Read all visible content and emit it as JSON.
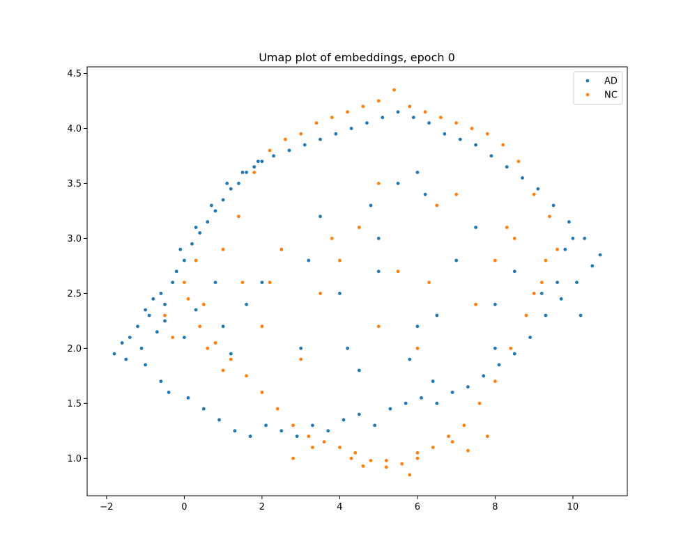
{
  "chart_data": {
    "type": "scatter",
    "title": "Umap plot of embeddings, epoch 0",
    "xlabel": "",
    "ylabel": "",
    "xlim": [
      -2.5,
      11.4
    ],
    "ylim": [
      0.66,
      4.56
    ],
    "xticks": [
      -2,
      0,
      2,
      4,
      6,
      8,
      10
    ],
    "xtick_labels": [
      "−2",
      "0",
      "2",
      "4",
      "6",
      "8",
      "10"
    ],
    "yticks": [
      1.0,
      1.5,
      2.0,
      2.5,
      3.0,
      3.5,
      4.0,
      4.5
    ],
    "ytick_labels": [
      "1.0",
      "1.5",
      "2.0",
      "2.5",
      "3.0",
      "3.5",
      "4.0",
      "4.5"
    ],
    "grid": false,
    "legend_position": "top-right",
    "series": [
      {
        "name": "AD",
        "color": "#1f77b4",
        "marker": "circle",
        "x": [
          -1.8,
          -1.6,
          -1.4,
          -1.2,
          -1.0,
          -0.8,
          -0.6,
          -1.5,
          -1.1,
          -0.9,
          -0.7,
          -0.5,
          -0.3,
          -0.6,
          -0.2,
          0.0,
          0.2,
          0.4,
          0.6,
          0.8,
          1.0,
          1.2,
          1.4,
          1.6,
          1.8,
          2.0,
          -0.4,
          0.1,
          0.5,
          0.9,
          1.3,
          1.7,
          2.1,
          2.5,
          2.9,
          3.3,
          3.7,
          4.1,
          4.5,
          4.9,
          5.3,
          5.7,
          6.1,
          6.5,
          6.9,
          7.3,
          7.7,
          8.1,
          8.5,
          8.9,
          9.3,
          9.7,
          10.1,
          10.5,
          10.7,
          10.3,
          9.9,
          9.5,
          9.1,
          8.7,
          8.3,
          7.9,
          7.5,
          7.1,
          6.7,
          6.3,
          5.9,
          5.5,
          5.1,
          4.7,
          4.3,
          3.9,
          3.5,
          3.1,
          2.7,
          2.3,
          1.9,
          1.5,
          1.1,
          0.7,
          0.3,
          -0.1,
          3.0,
          4.0,
          5.0,
          6.0,
          7.0,
          8.0,
          2.0,
          3.5,
          4.5,
          5.5,
          6.5,
          7.5,
          8.5,
          1.0,
          2.5,
          4.2,
          5.8,
          6.2,
          9.6,
          10.2,
          10.0,
          9.8,
          0.0,
          0.8,
          1.6,
          3.2,
          4.8,
          6.4,
          8.0,
          9.2,
          5.0,
          6.0,
          -1.0,
          -0.5,
          0.3,
          1.2
        ],
        "y": [
          1.95,
          2.05,
          2.1,
          2.2,
          2.35,
          2.45,
          2.5,
          1.9,
          2.0,
          2.3,
          2.15,
          2.4,
          2.6,
          1.7,
          2.7,
          2.8,
          2.95,
          3.05,
          3.15,
          3.25,
          3.35,
          3.45,
          3.5,
          3.6,
          3.65,
          3.7,
          1.6,
          1.55,
          1.45,
          1.35,
          1.25,
          1.2,
          1.3,
          1.25,
          1.2,
          1.3,
          1.25,
          1.35,
          1.4,
          1.3,
          1.45,
          1.5,
          1.55,
          1.5,
          1.6,
          1.65,
          1.75,
          1.85,
          1.95,
          2.1,
          2.3,
          2.45,
          2.6,
          2.75,
          2.85,
          3.0,
          3.15,
          3.3,
          3.45,
          3.55,
          3.65,
          3.75,
          3.85,
          3.9,
          3.95,
          4.05,
          4.1,
          4.15,
          4.1,
          4.05,
          4.0,
          3.95,
          3.9,
          3.85,
          3.8,
          3.75,
          3.7,
          3.6,
          3.5,
          3.3,
          3.1,
          2.9,
          2.0,
          2.5,
          3.0,
          2.2,
          2.8,
          2.4,
          2.6,
          3.2,
          1.8,
          3.5,
          2.3,
          3.1,
          2.7,
          2.2,
          2.9,
          2.0,
          1.9,
          3.4,
          2.6,
          2.3,
          3.0,
          2.9,
          2.1,
          2.6,
          2.4,
          2.8,
          3.3,
          1.7,
          2.0,
          2.5,
          2.7,
          3.6,
          1.85,
          2.25,
          2.35,
          1.95
        ]
      },
      {
        "name": "NC",
        "color": "#ff7f0e",
        "marker": "circle",
        "x": [
          -0.5,
          -0.3,
          0.0,
          0.3,
          0.6,
          1.0,
          1.4,
          1.8,
          2.2,
          2.6,
          3.0,
          3.4,
          3.8,
          4.2,
          4.6,
          5.0,
          5.4,
          5.8,
          6.2,
          6.6,
          7.0,
          7.4,
          7.8,
          8.2,
          8.6,
          9.0,
          9.4,
          9.6,
          9.2,
          8.8,
          8.4,
          8.0,
          7.6,
          7.2,
          6.8,
          6.4,
          6.0,
          5.6,
          5.2,
          4.8,
          4.4,
          4.0,
          3.6,
          3.2,
          2.8,
          2.4,
          2.0,
          1.6,
          1.2,
          0.8,
          0.4,
          0.1,
          2.5,
          3.5,
          4.5,
          5.5,
          6.5,
          7.5,
          8.5,
          1.5,
          2.0,
          3.0,
          4.0,
          5.0,
          6.0,
          7.0,
          8.0,
          9.0,
          5.2,
          5.8,
          6.0,
          4.6,
          4.3,
          3.3,
          2.8,
          6.9,
          7.3,
          7.8,
          5.0,
          1.0,
          0.5,
          2.2,
          3.8,
          6.3,
          8.3,
          9.3
        ],
        "y": [
          2.3,
          2.1,
          2.6,
          2.8,
          2.0,
          1.8,
          3.2,
          3.6,
          3.8,
          3.9,
          3.95,
          4.05,
          4.1,
          4.15,
          4.2,
          4.25,
          4.35,
          4.2,
          4.15,
          4.1,
          4.05,
          4.0,
          3.95,
          3.85,
          3.7,
          3.4,
          3.2,
          2.9,
          2.6,
          2.3,
          2.0,
          1.7,
          1.5,
          1.3,
          1.2,
          1.1,
          1.0,
          0.95,
          0.92,
          0.98,
          1.05,
          1.1,
          1.15,
          1.2,
          1.3,
          1.45,
          1.6,
          1.75,
          1.9,
          2.05,
          2.2,
          2.45,
          2.9,
          2.5,
          3.1,
          2.7,
          3.3,
          2.4,
          3.0,
          2.6,
          2.2,
          1.9,
          2.8,
          3.5,
          2.0,
          3.4,
          2.8,
          2.5,
          0.98,
          0.85,
          1.05,
          0.93,
          1.0,
          1.1,
          1.0,
          1.15,
          1.07,
          1.2,
          2.2,
          2.9,
          2.4,
          2.6,
          3.0,
          2.6,
          3.1,
          2.8
        ]
      }
    ]
  }
}
